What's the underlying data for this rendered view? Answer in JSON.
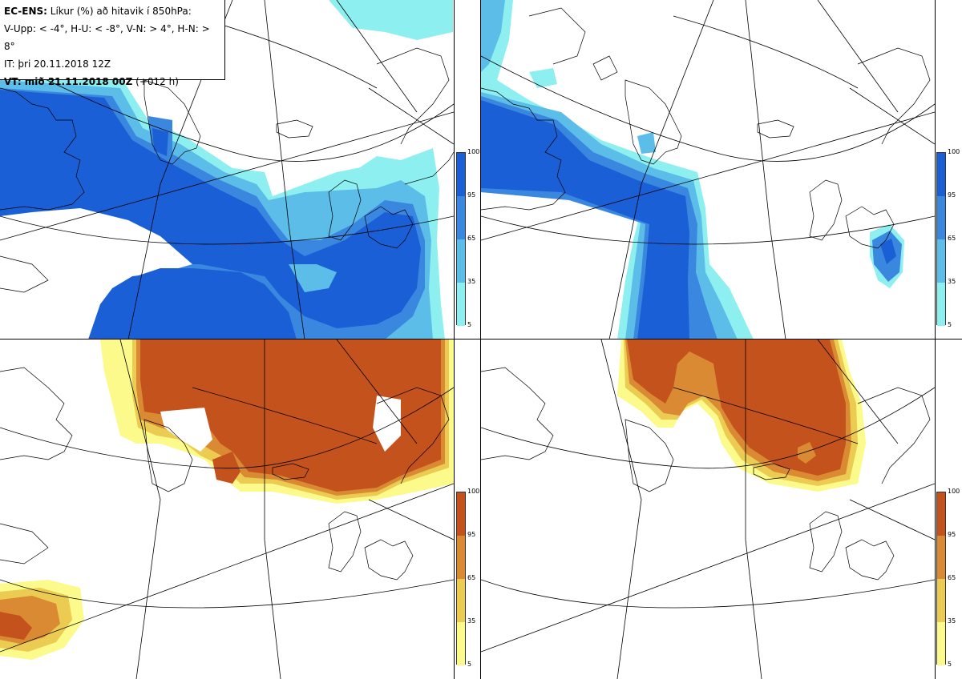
{
  "header": {
    "model": "EC-ENS:",
    "description": "Líkur (%) að hitavik í 850hPa:",
    "thresholds": "V-Upp: < -4°, H-U: < -8°, V-N: > 4°, H-N: > 8°",
    "init_time": "IT: þri 20.11.2018 12Z",
    "valid_label": "VT: mið 21.11.2018 00Z",
    "valid_offset": "(+012 h)"
  },
  "panels": [
    {
      "key": "cold-minus4",
      "scheme": "blue"
    },
    {
      "key": "cold-minus8",
      "scheme": "blue"
    },
    {
      "key": "warm-plus4",
      "scheme": "orange"
    },
    {
      "key": "warm-plus8",
      "scheme": "orange"
    }
  ],
  "legend": {
    "ticks": [
      "100",
      "95",
      "65",
      "35",
      "5"
    ],
    "blue_colors": [
      "#1a5fd6",
      "#3a87e0",
      "#5bbde8",
      "#8eeff0"
    ],
    "orange_colors": [
      "#c4521c",
      "#d98a32",
      "#eccb52",
      "#fbfa8a"
    ]
  }
}
